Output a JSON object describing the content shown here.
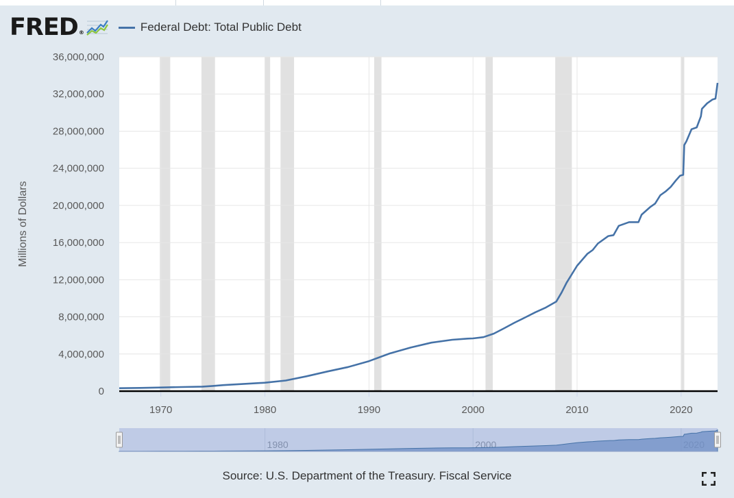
{
  "header": {
    "logo_text": "FRED",
    "logo_mark": "®",
    "logo_icon": "rising-line-graph-icon",
    "legend_label": "Federal Debt: Total Public Debt"
  },
  "chart_data": {
    "type": "line",
    "ylabel": "Millions of Dollars",
    "ylim": [
      0,
      36000000
    ],
    "y_ticks": [
      0,
      4000000,
      8000000,
      12000000,
      16000000,
      20000000,
      24000000,
      28000000,
      32000000,
      36000000
    ],
    "y_tick_labels": [
      "0",
      "4,000,000",
      "8,000,000",
      "12,000,000",
      "16,000,000",
      "20,000,000",
      "24,000,000",
      "28,000,000",
      "32,000,000",
      "36,000,000"
    ],
    "xlim": [
      1966.0,
      2023.5
    ],
    "x_ticks": [
      1970,
      1980,
      1990,
      2000,
      2010,
      2020
    ],
    "x_tick_labels": [
      "1970",
      "1980",
      "1990",
      "2000",
      "2010",
      "2020"
    ],
    "grid": true,
    "recessions": [
      [
        1969.9,
        1970.9
      ],
      [
        1973.9,
        1975.2
      ],
      [
        1980.0,
        1980.5
      ],
      [
        1981.5,
        1982.8
      ],
      [
        1990.5,
        1991.2
      ],
      [
        2001.2,
        2001.9
      ],
      [
        2007.9,
        2009.5
      ],
      [
        2020.0,
        2020.3
      ]
    ],
    "series": [
      {
        "name": "Federal Debt: Total Public Debt",
        "color": "#4572a7",
        "x": [
          1966.0,
          1968.0,
          1970.0,
          1972.0,
          1974.0,
          1975.0,
          1976.0,
          1978.0,
          1980.0,
          1982.0,
          1984.0,
          1986.0,
          1988.0,
          1990.0,
          1992.0,
          1994.0,
          1996.0,
          1998.0,
          1999.5,
          2000.0,
          2001.0,
          2002.0,
          2003.0,
          2004.0,
          2005.0,
          2006.0,
          2007.0,
          2008.0,
          2008.5,
          2009.0,
          2010.0,
          2011.0,
          2011.5,
          2012.0,
          2013.0,
          2013.5,
          2014.0,
          2015.0,
          2015.9,
          2016.2,
          2017.0,
          2017.5,
          2018.0,
          2018.5,
          2019.0,
          2019.5,
          2019.9,
          2020.2,
          2020.3,
          2020.5,
          2021.0,
          2021.5,
          2021.9,
          2022.0,
          2022.5,
          2023.0,
          2023.3,
          2023.5
        ],
        "values": [
          320000,
          350000,
          390000,
          440000,
          490000,
          560000,
          650000,
          780000,
          910000,
          1140000,
          1600000,
          2120000,
          2600000,
          3230000,
          4060000,
          4690000,
          5220000,
          5530000,
          5660000,
          5680000,
          5810000,
          6200000,
          6780000,
          7380000,
          7930000,
          8500000,
          9010000,
          9650000,
          10600000,
          11700000,
          13500000,
          14800000,
          15200000,
          15900000,
          16700000,
          16800000,
          17800000,
          18200000,
          18200000,
          19000000,
          19800000,
          20200000,
          21100000,
          21500000,
          22000000,
          22700000,
          23200000,
          23300000,
          26500000,
          26900000,
          28200000,
          28400000,
          29600000,
          30400000,
          31000000,
          31400000,
          31500000,
          33200000
        ]
      }
    ],
    "navigator": {
      "x_tick_labels": [
        "1980",
        "2000",
        "2020"
      ],
      "x_ticks": [
        1980,
        2000,
        2020
      ]
    }
  },
  "footer": {
    "source": "Source: U.S. Department of the Treasury. Fiscal Service",
    "fullscreen_icon": "fullscreen-icon"
  }
}
